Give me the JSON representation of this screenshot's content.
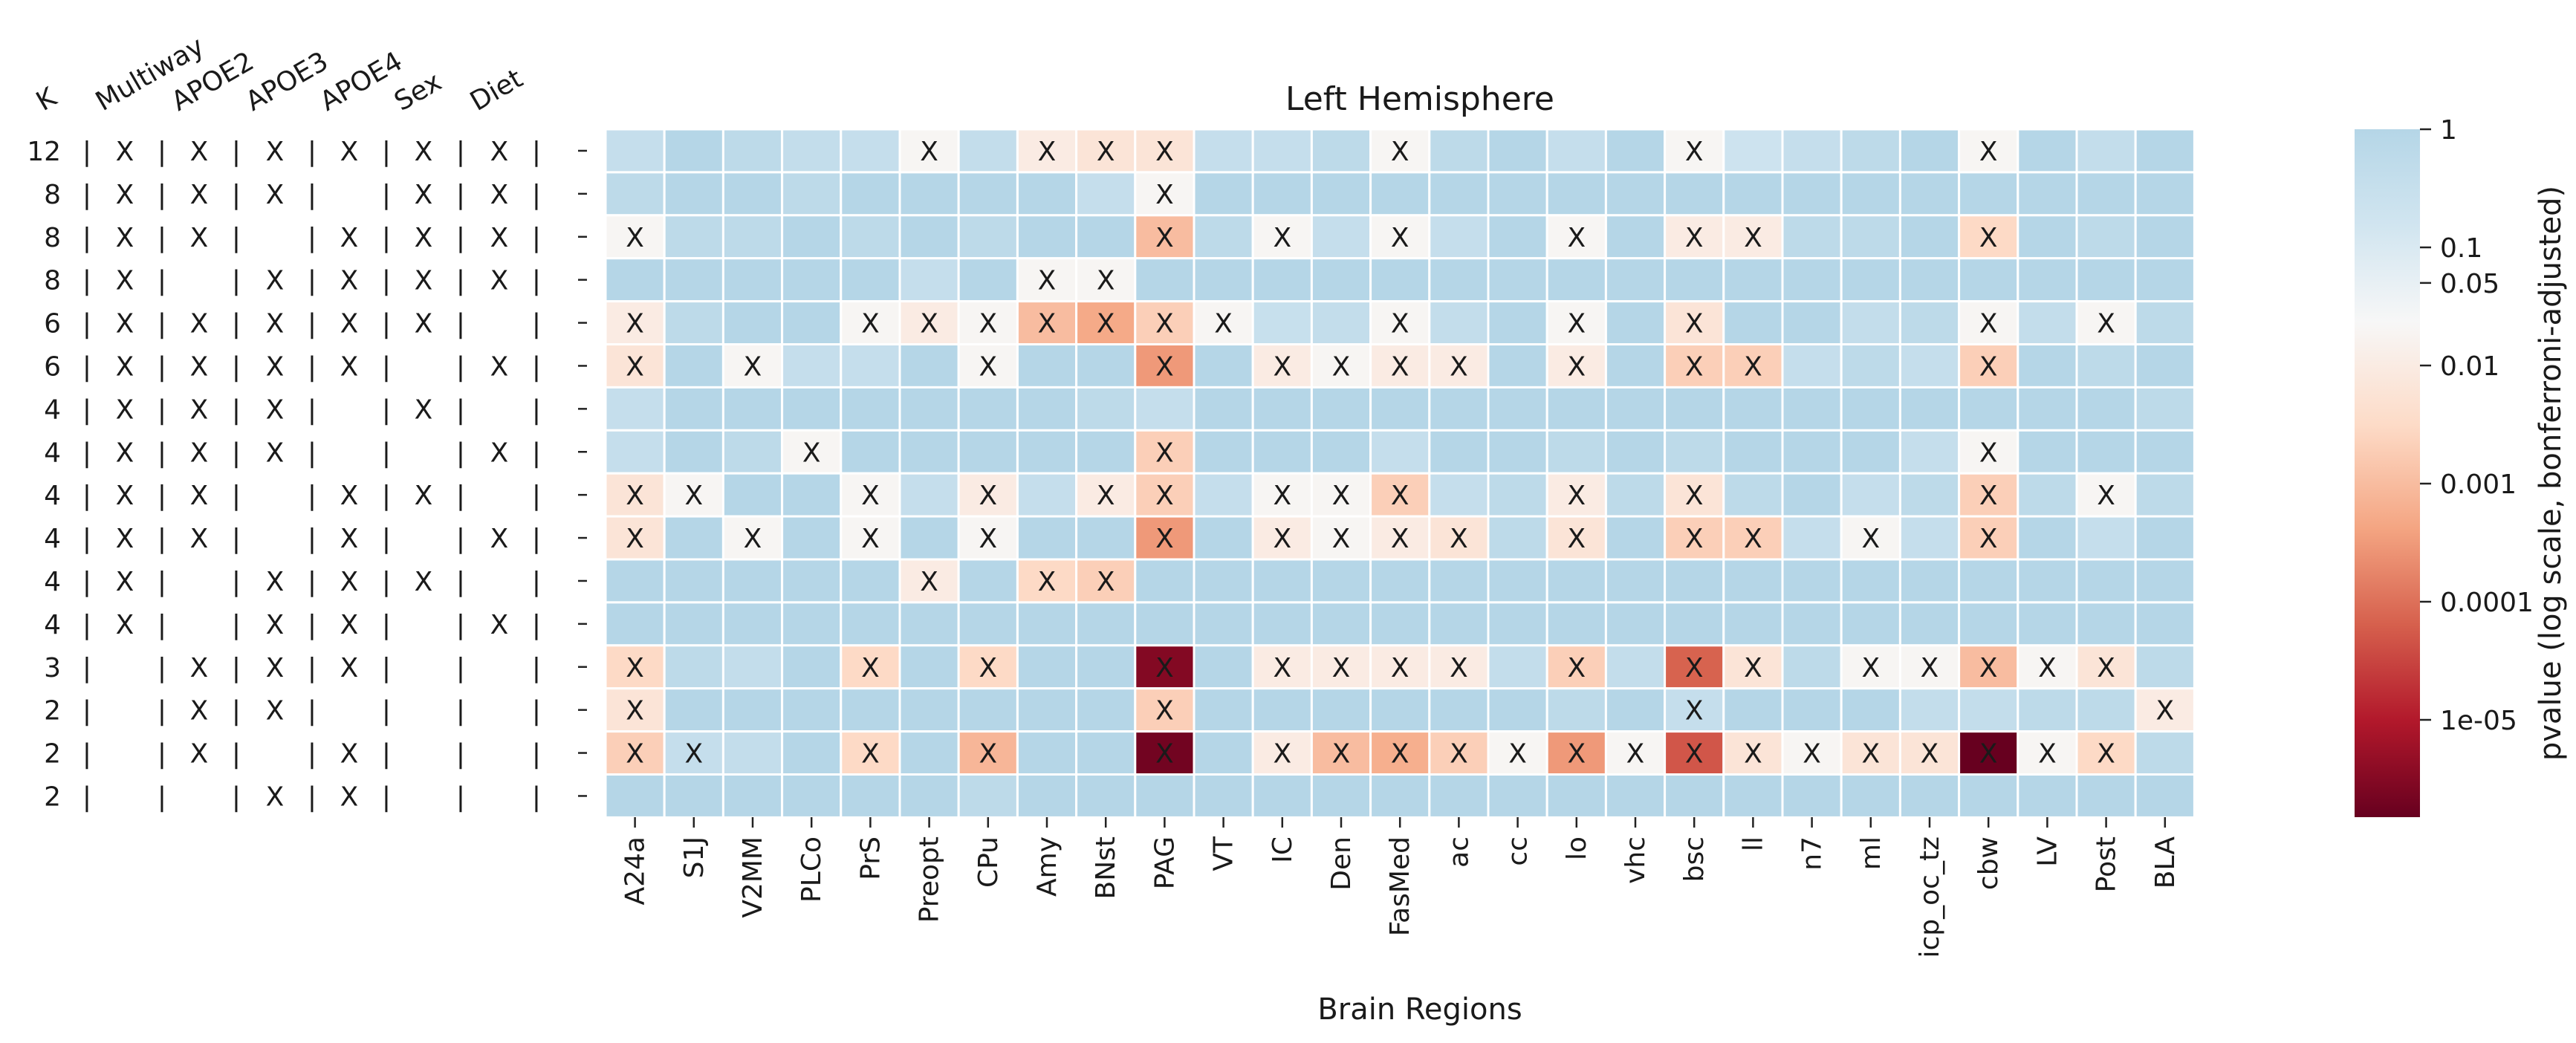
{
  "chart_data": {
    "type": "heatmap",
    "title": "Left Hemisphere",
    "xlabel": "Brain Regions",
    "colorbar_label": "pvalue (log scale, bonferroni-adjusted)",
    "colorbar_ticks": [
      "1",
      "0.1",
      "0.05",
      "0.01",
      "0.001",
      "0.0001",
      "1e-05"
    ],
    "colorbar_tick_values": [
      1,
      0.1,
      0.05,
      0.01,
      0.001,
      0.0001,
      1e-05
    ],
    "color_scale": "log",
    "color_range": [
      1.5e-06,
      1
    ],
    "colormap": [
      "#67001f",
      "#b2182b",
      "#d6604d",
      "#f4a582",
      "#fddbc7",
      "#f7f7f7",
      "#d1e5f0",
      "#b5d6e7"
    ],
    "significance_mark": "X",
    "columns": [
      "A24a",
      "S1J",
      "V2MM",
      "PLCo",
      "PrS",
      "Preopt",
      "CPu",
      "Amy",
      "BNst",
      "PAG",
      "VT",
      "IC",
      "Den",
      "FasMed",
      "ac",
      "cc",
      "lo",
      "vhc",
      "bsc",
      "ll",
      "n7",
      "ml",
      "icp_oc_tz",
      "cbw",
      "LV",
      "Post",
      "BLA"
    ],
    "design_headers": [
      "K",
      "Multiway",
      "APOE2",
      "APOE3",
      "APOE4",
      "Sex",
      "Diet"
    ],
    "design_rows": [
      {
        "k": "12",
        "flags": [
          "X",
          "X",
          "X",
          "X",
          "X",
          "X"
        ]
      },
      {
        "k": "8",
        "flags": [
          "X",
          "X",
          "X",
          "",
          "X",
          "X"
        ]
      },
      {
        "k": "8",
        "flags": [
          "X",
          "X",
          "",
          "X",
          "X",
          "X"
        ]
      },
      {
        "k": "8",
        "flags": [
          "X",
          "",
          "X",
          "X",
          "X",
          "X"
        ]
      },
      {
        "k": "6",
        "flags": [
          "X",
          "X",
          "X",
          "X",
          "X",
          ""
        ]
      },
      {
        "k": "6",
        "flags": [
          "X",
          "X",
          "X",
          "X",
          "",
          "X"
        ]
      },
      {
        "k": "4",
        "flags": [
          "X",
          "X",
          "X",
          "",
          "X",
          ""
        ]
      },
      {
        "k": "4",
        "flags": [
          "X",
          "X",
          "X",
          "",
          "",
          "X"
        ]
      },
      {
        "k": "4",
        "flags": [
          "X",
          "X",
          "",
          "X",
          "X",
          ""
        ]
      },
      {
        "k": "4",
        "flags": [
          "X",
          "X",
          "",
          "X",
          "",
          "X"
        ]
      },
      {
        "k": "4",
        "flags": [
          "X",
          "",
          "X",
          "X",
          "X",
          ""
        ]
      },
      {
        "k": "4",
        "flags": [
          "X",
          "",
          "X",
          "X",
          "",
          "X"
        ]
      },
      {
        "k": "3",
        "flags": [
          "",
          "X",
          "X",
          "X",
          "",
          ""
        ]
      },
      {
        "k": "2",
        "flags": [
          "",
          "X",
          "X",
          "",
          "",
          ""
        ]
      },
      {
        "k": "2",
        "flags": [
          "",
          "X",
          "",
          "X",
          "",
          ""
        ]
      },
      {
        "k": "2",
        "flags": [
          "",
          "",
          "X",
          "X",
          "",
          ""
        ]
      }
    ],
    "pvalues": [
      [
        0.35,
        1,
        0.6,
        0.4,
        0.35,
        0.02,
        0.4,
        0.01,
        0.006,
        0.006,
        0.35,
        0.35,
        0.6,
        0.02,
        0.6,
        1,
        0.35,
        1,
        0.02,
        0.2,
        0.35,
        0.6,
        1,
        0.02,
        1,
        0.4,
        1
      ],
      [
        0.6,
        1,
        1,
        0.6,
        1,
        1,
        1,
        1,
        0.35,
        0.02,
        1,
        1,
        1,
        1,
        1,
        1,
        1,
        1,
        1,
        1,
        1,
        1,
        1,
        1,
        1,
        1,
        1
      ],
      [
        0.02,
        0.6,
        0.6,
        1,
        0.6,
        1,
        0.6,
        1,
        1,
        0.001,
        0.6,
        0.02,
        0.35,
        0.02,
        0.35,
        1,
        0.02,
        1,
        0.01,
        0.01,
        0.6,
        0.6,
        1,
        0.003,
        1,
        0.6,
        1
      ],
      [
        1,
        1,
        1,
        1,
        1,
        0.35,
        1,
        0.02,
        0.02,
        1,
        1,
        1,
        1,
        1,
        1,
        1,
        1,
        1,
        1,
        1,
        1,
        1,
        1,
        1,
        1,
        1,
        1
      ],
      [
        0.01,
        0.6,
        1,
        1,
        0.02,
        0.01,
        0.02,
        0.001,
        0.0005,
        0.002,
        0.02,
        0.3,
        0.4,
        0.02,
        0.4,
        1,
        0.02,
        1,
        0.006,
        1,
        1,
        0.4,
        0.6,
        0.02,
        0.4,
        0.02,
        0.6
      ],
      [
        0.006,
        1,
        0.02,
        0.35,
        0.35,
        1,
        0.02,
        1,
        1,
        0.0003,
        1,
        0.01,
        0.02,
        0.01,
        0.01,
        1,
        0.01,
        1,
        0.002,
        0.002,
        0.35,
        0.6,
        0.35,
        0.002,
        1,
        0.6,
        1
      ],
      [
        0.35,
        1,
        1,
        1,
        1,
        1,
        1,
        1,
        0.6,
        0.35,
        1,
        1,
        1,
        1,
        1,
        1,
        1,
        1,
        1,
        1,
        1,
        1,
        1,
        1,
        1,
        1,
        0.6
      ],
      [
        0.35,
        1,
        0.6,
        0.02,
        1,
        1,
        1,
        1,
        1,
        0.002,
        1,
        1,
        1,
        0.35,
        1,
        1,
        0.6,
        1,
        0.6,
        1,
        1,
        1,
        0.35,
        0.02,
        1,
        1,
        1
      ],
      [
        0.006,
        0.02,
        1,
        1,
        0.02,
        0.35,
        0.01,
        0.35,
        0.01,
        0.002,
        0.35,
        0.02,
        0.02,
        0.002,
        0.35,
        0.6,
        0.01,
        0.6,
        0.006,
        0.6,
        1,
        0.35,
        0.6,
        0.002,
        0.6,
        0.02,
        0.6
      ],
      [
        0.006,
        1,
        0.02,
        1,
        0.02,
        1,
        0.02,
        1,
        1,
        0.0003,
        1,
        0.01,
        0.02,
        0.01,
        0.006,
        0.6,
        0.006,
        1,
        0.002,
        0.002,
        0.35,
        0.02,
        0.35,
        0.002,
        1,
        0.35,
        1
      ],
      [
        1,
        1,
        1,
        1,
        1,
        0.01,
        1,
        0.003,
        0.002,
        1,
        1,
        1,
        1,
        1,
        1,
        1,
        1,
        1,
        1,
        1,
        1,
        1,
        1,
        1,
        1,
        1,
        1
      ],
      [
        1,
        1,
        1,
        1,
        1,
        1,
        1,
        1,
        1,
        1,
        1,
        1,
        1,
        1,
        1,
        1,
        1,
        1,
        1,
        1,
        1,
        1,
        1,
        1,
        1,
        1,
        1
      ],
      [
        0.003,
        0.6,
        0.4,
        1,
        0.003,
        1,
        0.003,
        1,
        1,
        3e-06,
        1,
        0.01,
        0.01,
        0.01,
        0.01,
        0.4,
        0.002,
        0.4,
        7e-05,
        0.006,
        0.6,
        0.02,
        0.02,
        0.001,
        0.02,
        0.006,
        0.6
      ],
      [
        0.006,
        1,
        1,
        1,
        1,
        1,
        1,
        1,
        1,
        0.002,
        1,
        1,
        1,
        1,
        1,
        1,
        0.6,
        1,
        0.35,
        1,
        1,
        1,
        0.4,
        0.4,
        0.6,
        0.6,
        0.01
      ],
      [
        0.002,
        0.35,
        0.4,
        1,
        0.003,
        1,
        0.0008,
        1,
        1,
        2e-06,
        1,
        0.01,
        0.001,
        0.0006,
        0.002,
        0.02,
        0.0003,
        0.02,
        5e-05,
        0.006,
        0.02,
        0.006,
        0.006,
        1.5e-06,
        0.02,
        0.003,
        0.6
      ],
      [
        1,
        1,
        1,
        1,
        1,
        1,
        0.6,
        1,
        1,
        1,
        1,
        1,
        1,
        1,
        1,
        1,
        1,
        1,
        1,
        1,
        1,
        1,
        1,
        1,
        1,
        1,
        1
      ]
    ],
    "x_marks": [
      [
        5,
        7,
        8,
        9,
        13,
        18,
        23
      ],
      [
        9
      ],
      [
        0,
        9,
        11,
        13,
        16,
        18,
        19,
        23
      ],
      [
        7,
        8
      ],
      [
        0,
        4,
        5,
        6,
        7,
        8,
        9,
        10,
        13,
        16,
        18,
        23,
        25
      ],
      [
        0,
        2,
        6,
        9,
        11,
        12,
        13,
        14,
        16,
        18,
        19,
        23
      ],
      [],
      [
        3,
        9,
        23
      ],
      [
        0,
        1,
        4,
        6,
        8,
        9,
        11,
        12,
        13,
        16,
        18,
        23,
        25
      ],
      [
        0,
        2,
        4,
        6,
        9,
        11,
        12,
        13,
        14,
        16,
        18,
        19,
        21,
        23
      ],
      [
        5,
        7,
        8
      ],
      [],
      [
        0,
        4,
        6,
        9,
        11,
        12,
        13,
        14,
        16,
        18,
        19,
        21,
        22,
        23,
        24,
        25
      ],
      [
        0,
        9,
        18,
        26
      ],
      [
        0,
        1,
        4,
        6,
        9,
        11,
        12,
        13,
        14,
        15,
        16,
        17,
        18,
        19,
        20,
        21,
        22,
        23,
        24,
        25
      ],
      []
    ]
  }
}
